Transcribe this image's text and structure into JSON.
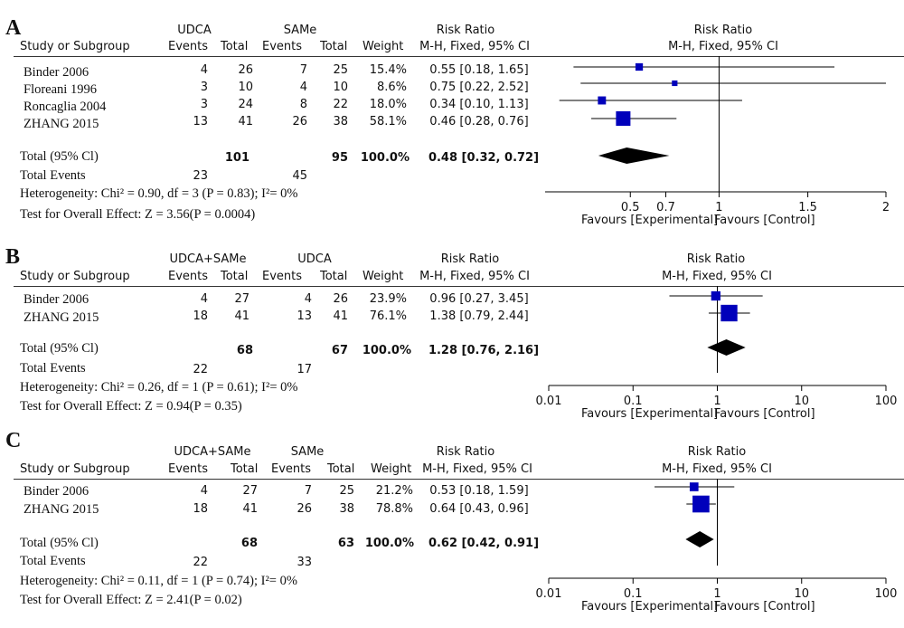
{
  "panels": [
    {
      "letter": "A",
      "group1": "UDCA",
      "group2": "SAMe",
      "col_events": "Events",
      "col_total": "Total",
      "col_study": "Study or Subgroup",
      "col_weight": "Weight",
      "rr_head1": "Risk Ratio",
      "rr_head2": "M-H, Fixed, 95% CI",
      "studies": [
        {
          "name": "Binder 2006",
          "e1": "4",
          "t1": "26",
          "e2": "7",
          "t2": "25",
          "weight": "15.4%",
          "ci": "0.55 [0.18, 1.65]"
        },
        {
          "name": "Floreani 1996",
          "e1": "3",
          "t1": "10",
          "e2": "4",
          "t2": "10",
          "weight": "8.6%",
          "ci": "0.75 [0.22, 2.52]"
        },
        {
          "name": "Roncaglia 2004",
          "e1": "3",
          "t1": "24",
          "e2": "8",
          "t2": "22",
          "weight": "18.0%",
          "ci": "0.34 [0.10, 1.13]"
        },
        {
          "name": "ZHANG 2015",
          "e1": "13",
          "t1": "41",
          "e2": "26",
          "t2": "38",
          "weight": "58.1%",
          "ci": "0.46 [0.28, 0.76]"
        }
      ],
      "total_label": "Total (95% Cl)",
      "total1": "101",
      "total2": "95",
      "total_weight": "100.0%",
      "total_ci": "0.48 [0.32, 0.72]",
      "events_label": "Total Events",
      "events1": "23",
      "events2": "45",
      "heterogeneity": "Heterogeneity: Chi² = 0.90, df = 3 (P = 0.83); I²= 0%",
      "overall": "Test for Overall Effect: Z = 3.56(P = 0.0004)",
      "favours_left": "Favours [Experimental]",
      "favours_right": "Favours [Control]"
    },
    {
      "letter": "B",
      "group1": "UDCA+SAMe",
      "group2": "UDCA",
      "col_events": "Events",
      "col_total": "Total",
      "col_study": "Study or Subgroup",
      "col_weight": "Weight",
      "rr_head1": "Risk Ratio",
      "rr_head2": "M-H, Fixed, 95% CI",
      "studies": [
        {
          "name": "Binder 2006",
          "e1": "4",
          "t1": "27",
          "e2": "4",
          "t2": "26",
          "weight": "23.9%",
          "ci": "0.96 [0.27, 3.45]"
        },
        {
          "name": "ZHANG 2015",
          "e1": "18",
          "t1": "41",
          "e2": "13",
          "t2": "41",
          "weight": "76.1%",
          "ci": "1.38 [0.79, 2.44]"
        }
      ],
      "total_label": "Total (95% Cl)",
      "total1": "68",
      "total2": "67",
      "total_weight": "100.0%",
      "total_ci": "1.28 [0.76, 2.16]",
      "events_label": "Total Events",
      "events1": "22",
      "events2": "17",
      "heterogeneity": "Heterogeneity: Chi² = 0.26, df = 1 (P = 0.61); I²= 0%",
      "overall": "Test for Overall Effect: Z = 0.94(P = 0.35)",
      "favours_left": "Favours [Experimental]",
      "favours_right": "Favours [Control]"
    },
    {
      "letter": "C",
      "group1": "UDCA+SAMe",
      "group2": "SAMe",
      "col_events": "Events",
      "col_total": "Total",
      "col_study": "Study or Subgroup",
      "col_weight": "Weight",
      "rr_head1": "Risk Ratio",
      "rr_head2": "M-H, Fixed, 95% CI",
      "studies": [
        {
          "name": "Binder 2006",
          "e1": "4",
          "t1": "27",
          "e2": "7",
          "t2": "25",
          "weight": "21.2%",
          "ci": "0.53 [0.18, 1.59]"
        },
        {
          "name": "ZHANG 2015",
          "e1": "18",
          "t1": "41",
          "e2": "26",
          "t2": "38",
          "weight": "78.8%",
          "ci": "0.64 [0.43, 0.96]"
        }
      ],
      "total_label": "Total (95% Cl)",
      "total1": "68",
      "total2": "63",
      "total_weight": "100.0%",
      "total_ci": "0.62 [0.42, 0.91]",
      "events_label": "Total Events",
      "events1": "22",
      "events2": "33",
      "heterogeneity": "Heterogeneity: Chi² = 0.11, df = 1 (P = 0.74); I²= 0%",
      "overall": "Test for Overall Effect: Z = 2.41(P = 0.02)",
      "favours_left": "Favours [Experimental]",
      "favours_right": "Favours [Control]"
    }
  ],
  "chart_data": [
    {
      "type": "forest",
      "title": "A",
      "scale": "linear",
      "ticks": [
        "0.5",
        "0.7",
        "1",
        "1.5",
        "2"
      ],
      "xlim": [
        0.02,
        1.94
      ],
      "studies": [
        {
          "name": "Binder 2006",
          "rr": 0.55,
          "lo": 0.18,
          "hi": 1.65,
          "weight": 15.4
        },
        {
          "name": "Floreani 1996",
          "rr": 0.75,
          "lo": 0.22,
          "hi": 2.52,
          "weight": 8.6
        },
        {
          "name": "Roncaglia 2004",
          "rr": 0.34,
          "lo": 0.1,
          "hi": 1.13,
          "weight": 18.0
        },
        {
          "name": "ZHANG 2015",
          "rr": 0.46,
          "lo": 0.28,
          "hi": 0.76,
          "weight": 58.1
        }
      ],
      "total": {
        "rr": 0.48,
        "lo": 0.32,
        "hi": 0.72
      }
    },
    {
      "type": "forest",
      "title": "B",
      "scale": "log",
      "ticks": [
        "0.01",
        "0.1",
        "1",
        "10",
        "100"
      ],
      "xlim": [
        0.01,
        100
      ],
      "studies": [
        {
          "name": "Binder 2006",
          "rr": 0.96,
          "lo": 0.27,
          "hi": 3.45,
          "weight": 23.9
        },
        {
          "name": "ZHANG 2015",
          "rr": 1.38,
          "lo": 0.79,
          "hi": 2.44,
          "weight": 76.1
        }
      ],
      "total": {
        "rr": 1.28,
        "lo": 0.76,
        "hi": 2.16
      }
    },
    {
      "type": "forest",
      "title": "C",
      "scale": "log",
      "ticks": [
        "0.01",
        "0.1",
        "1",
        "10",
        "100"
      ],
      "xlim": [
        0.01,
        100
      ],
      "studies": [
        {
          "name": "Binder 2006",
          "rr": 0.53,
          "lo": 0.18,
          "hi": 1.59,
          "weight": 21.2
        },
        {
          "name": "ZHANG 2015",
          "rr": 0.64,
          "lo": 0.43,
          "hi": 0.96,
          "weight": 78.8
        }
      ],
      "total": {
        "rr": 0.62,
        "lo": 0.42,
        "hi": 0.91
      }
    }
  ],
  "colors": {
    "square": "#0000bb",
    "diamond": "#000000",
    "line": "#000000"
  }
}
